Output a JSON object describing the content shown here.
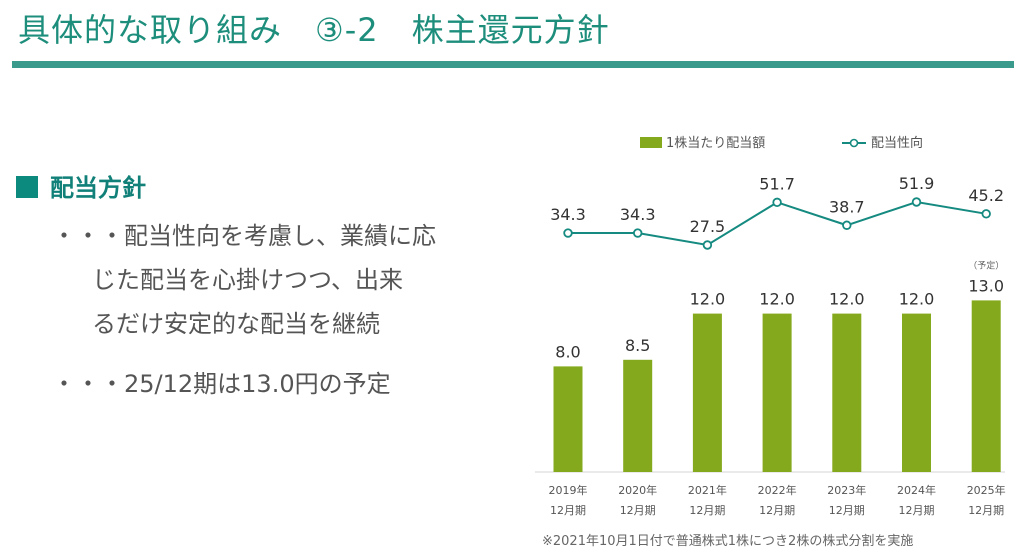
{
  "title": "具体的な取り組み　③-2　株主還元方針",
  "policy": {
    "heading": "配当方針",
    "lines": [
      "・・・配当性向を考慮し、業績に応",
      "じた配当を心掛けつつ、出来",
      "るだけ安定的な配当を継続",
      "・・・25/12期は13.0円の予定"
    ]
  },
  "chart_data": {
    "type": "bar",
    "categories": [
      [
        "2019年",
        "12月期"
      ],
      [
        "2020年",
        "12月期"
      ],
      [
        "2021年",
        "12月期"
      ],
      [
        "2022年",
        "12月期"
      ],
      [
        "2023年",
        "12月期"
      ],
      [
        "2024年",
        "12月期"
      ],
      [
        "2025年",
        "12月期"
      ]
    ],
    "series": [
      {
        "name": "1株当たり配当額",
        "type": "bar",
        "values": [
          8.0,
          8.5,
          12.0,
          12.0,
          12.0,
          12.0,
          13.0
        ],
        "labels": [
          "8.0",
          "8.5",
          "12.0",
          "12.0",
          "12.0",
          "12.0",
          "13.0"
        ],
        "color": "#84a91c"
      },
      {
        "name": "配当性向",
        "type": "line",
        "values": [
          34.3,
          34.3,
          27.5,
          51.7,
          38.7,
          51.9,
          45.2
        ],
        "labels": [
          "34.3",
          "34.3",
          "27.5",
          "51.7",
          "38.7",
          "51.9",
          "45.2"
        ],
        "color": "#158a80"
      }
    ],
    "annotations": [
      {
        "category_index": 6,
        "text": "（予定）"
      }
    ],
    "legend_position": "top"
  },
  "footnote": "※2021年10月1日付で普通株式1株につき2株の株式分割を実施"
}
